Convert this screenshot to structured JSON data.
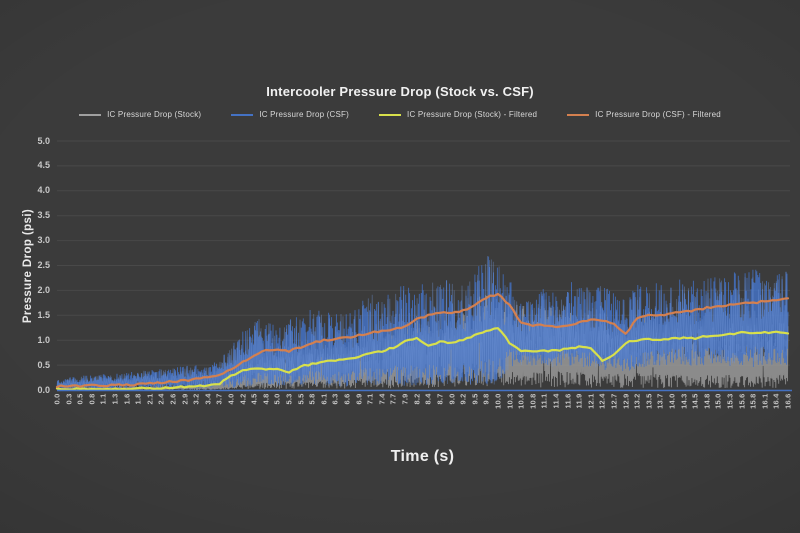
{
  "title": "Intercooler Pressure Drop (Stock vs. CSF)",
  "axes": {
    "y_title": "Pressure Drop (psi)",
    "x_title": "Time (s)"
  },
  "legend": {
    "items": [
      {
        "label": "IC Pressure Drop (Stock)",
        "color_key": "stock_raw"
      },
      {
        "label": "IC Pressure Drop (CSF)",
        "color_key": "csf_raw"
      },
      {
        "label": "IC Pressure Drop (Stock) - Filtered",
        "color_key": "stock_filtered"
      },
      {
        "label": "IC Pressure Drop (CSF) - Filtered",
        "color_key": "csf_filtered"
      }
    ]
  },
  "colors": {
    "background": "#3b3b3b",
    "gridline": "#494949",
    "axis_line": "#4472c4",
    "title_text": "#f1f1f1",
    "tick_text": "#c6c6c6",
    "stock_raw": "#a0a0a0",
    "csf_raw": "#4472c4",
    "csf_raw_light": "#7197d9",
    "stock_filtered": "#d8e04b",
    "csf_filtered": "#d4804f"
  },
  "chart_data": {
    "type": "line",
    "title": "Intercooler Pressure Drop (Stock vs. CSF)",
    "xlabel": "Time (s)",
    "ylabel": "Pressure Drop (psi)",
    "ylim": [
      0.0,
      5.0
    ],
    "grid": "horizontal",
    "legend_position": "top",
    "y_ticks": [
      "5.0",
      "4.5",
      "4.0",
      "3.5",
      "3.0",
      "2.5",
      "2.0",
      "1.5",
      "1.0",
      "0.5",
      "0.0"
    ],
    "x_labels": [
      "0.0",
      "0.3",
      "0.5",
      "0.8",
      "1.1",
      "1.3",
      "1.6",
      "1.8",
      "2.1",
      "2.4",
      "2.6",
      "2.9",
      "3.2",
      "3.4",
      "3.7",
      "4.0",
      "4.2",
      "4.5",
      "4.8",
      "5.0",
      "5.3",
      "5.5",
      "5.8",
      "6.1",
      "6.3",
      "6.6",
      "6.9",
      "7.1",
      "7.4",
      "7.7",
      "7.9",
      "8.2",
      "8.4",
      "8.7",
      "9.0",
      "9.2",
      "9.5",
      "9.8",
      "10.0",
      "10.3",
      "10.6",
      "10.8",
      "11.1",
      "11.4",
      "11.6",
      "11.9",
      "12.1",
      "12.4",
      "12.7",
      "12.9",
      "13.2",
      "13.5",
      "13.7",
      "14.0",
      "14.3",
      "14.5",
      "14.8",
      "15.0",
      "15.3",
      "15.6",
      "15.8",
      "16.1",
      "16.4",
      "16.6"
    ],
    "series": [
      {
        "name": "IC Pressure Drop (Stock)",
        "style": "raw-noise",
        "color_key": "stock_raw",
        "noise_seed": 7,
        "envelope_low": 0,
        "envelope_high": [
          0.06,
          0.06,
          0.07,
          0.07,
          0.08,
          0.08,
          0.09,
          0.09,
          0.1,
          0.1,
          0.11,
          0.12,
          0.13,
          0.15,
          0.2,
          0.4,
          0.55,
          0.65,
          0.7,
          0.8,
          0.7,
          0.8,
          0.85,
          0.8,
          0.85,
          0.9,
          0.95,
          1.0,
          1.1,
          1.2,
          1.35,
          1.4,
          1.3,
          1.35,
          1.45,
          1.6,
          1.8,
          2.0,
          1.9,
          1.75,
          1.7,
          1.65,
          1.75,
          1.6,
          1.7,
          1.55,
          1.5,
          1.55,
          1.45,
          1.4,
          1.5,
          1.45,
          1.35,
          1.3,
          1.35,
          1.3,
          1.3,
          1.25,
          1.35,
          1.3,
          1.35,
          1.3,
          1.4,
          1.35
        ]
      },
      {
        "name": "IC Pressure Drop (CSF)",
        "style": "raw-noise",
        "color_key": "csf_raw",
        "noise_seed": 13,
        "envelope_low": [
          0.02,
          0.02,
          0.02,
          0.02,
          0.02,
          0.02,
          0.02,
          0.02,
          0.02,
          0.02,
          0.02,
          0.02,
          0.02,
          0.02,
          0.02,
          0.02,
          0.02,
          0.02,
          0.02,
          0.02,
          0.02,
          0.02,
          0.02,
          0.02,
          0.02,
          0.02,
          0.02,
          0.02,
          0.02,
          0.02,
          0.02,
          0.02,
          0.02,
          0.02,
          0.02,
          0.02,
          0.02,
          0.02,
          0.02,
          0.4,
          0.45,
          0.45,
          0.45,
          0.4,
          0.45,
          0.4,
          0.4,
          0.35,
          0.35,
          0.3,
          0.35,
          0.4,
          0.4,
          0.45,
          0.45,
          0.4,
          0.45,
          0.45,
          0.4,
          0.45,
          0.4,
          0.45,
          0.4,
          0.45
        ],
        "envelope_high": [
          0.22,
          0.25,
          0.28,
          0.3,
          0.32,
          0.33,
          0.35,
          0.38,
          0.4,
          0.42,
          0.45,
          0.48,
          0.5,
          0.52,
          0.6,
          0.9,
          1.3,
          1.5,
          1.4,
          1.3,
          1.55,
          1.45,
          1.65,
          1.55,
          1.58,
          1.6,
          1.7,
          2.0,
          1.9,
          2.05,
          2.1,
          2.1,
          2.2,
          2.1,
          2.3,
          2.2,
          2.45,
          2.72,
          2.6,
          2.2,
          1.9,
          1.85,
          2.1,
          1.95,
          2.25,
          2.1,
          2.05,
          2.1,
          1.95,
          1.8,
          2.1,
          2.25,
          2.1,
          2.2,
          2.3,
          2.2,
          2.3,
          2.25,
          2.4,
          2.3,
          2.45,
          2.4,
          2.5,
          2.45
        ]
      },
      {
        "name": "IC Pressure Drop (Stock) - Filtered",
        "style": "line",
        "color_key": "stock_filtered",
        "values": [
          0.02,
          0.02,
          0.02,
          0.02,
          0.02,
          0.02,
          0.03,
          0.03,
          0.03,
          0.04,
          0.05,
          0.06,
          0.07,
          0.09,
          0.13,
          0.28,
          0.38,
          0.44,
          0.4,
          0.44,
          0.35,
          0.48,
          0.52,
          0.56,
          0.6,
          0.62,
          0.68,
          0.73,
          0.78,
          0.85,
          0.97,
          1.04,
          0.9,
          0.96,
          0.96,
          1.0,
          1.1,
          1.2,
          1.24,
          0.95,
          0.78,
          0.77,
          0.78,
          0.8,
          0.82,
          0.86,
          0.84,
          0.6,
          0.72,
          0.95,
          1.0,
          1.02,
          1.0,
          1.03,
          1.05,
          1.04,
          1.08,
          1.1,
          1.12,
          1.15,
          1.13,
          1.15,
          1.16,
          1.12
        ]
      },
      {
        "name": "IC Pressure Drop (CSF) - Filtered",
        "style": "line",
        "color_key": "csf_filtered",
        "values": [
          0.07,
          0.08,
          0.08,
          0.09,
          0.09,
          0.1,
          0.1,
          0.11,
          0.13,
          0.15,
          0.17,
          0.19,
          0.22,
          0.25,
          0.31,
          0.42,
          0.56,
          0.7,
          0.8,
          0.82,
          0.78,
          0.86,
          0.95,
          1.0,
          1.02,
          1.05,
          1.1,
          1.15,
          1.18,
          1.22,
          1.28,
          1.42,
          1.5,
          1.55,
          1.55,
          1.6,
          1.7,
          1.86,
          1.93,
          1.7,
          1.35,
          1.3,
          1.3,
          1.28,
          1.3,
          1.36,
          1.4,
          1.4,
          1.32,
          1.12,
          1.45,
          1.5,
          1.5,
          1.55,
          1.58,
          1.6,
          1.65,
          1.68,
          1.72,
          1.74,
          1.75,
          1.78,
          1.8,
          1.84
        ]
      }
    ]
  }
}
